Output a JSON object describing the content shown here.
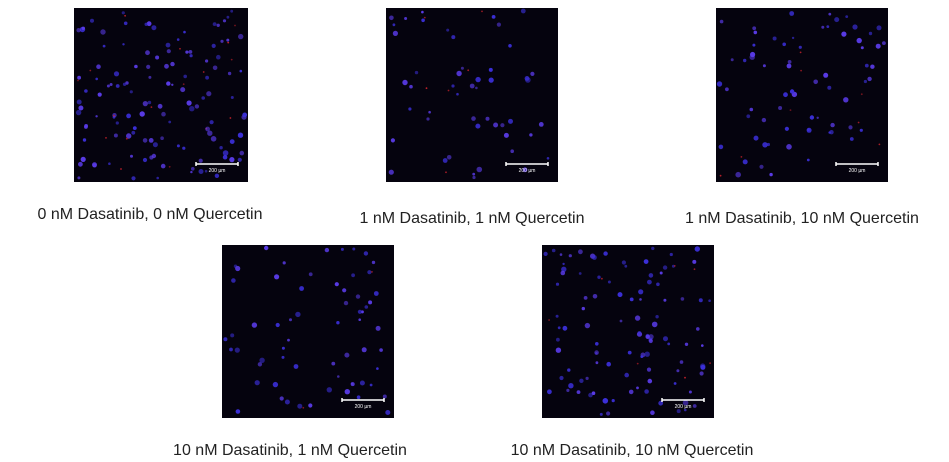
{
  "panels": [
    {
      "caption": "0 nM Dasatinib, 0 nM Quercetin",
      "scale_label": "200 µm"
    },
    {
      "caption": "1 nM Dasatinib, 1 nM Quercetin",
      "scale_label": "200 µm"
    },
    {
      "caption": "1 nM Dasatinib, 10 nM Quercetin",
      "scale_label": "200 µm"
    },
    {
      "caption": "10 nM Dasatinib, 1 nM Quercetin",
      "scale_label": "200 µm"
    },
    {
      "caption": "10 nM Dasatinib, 10 nM Quercetin",
      "scale_label": "200 µm"
    }
  ]
}
